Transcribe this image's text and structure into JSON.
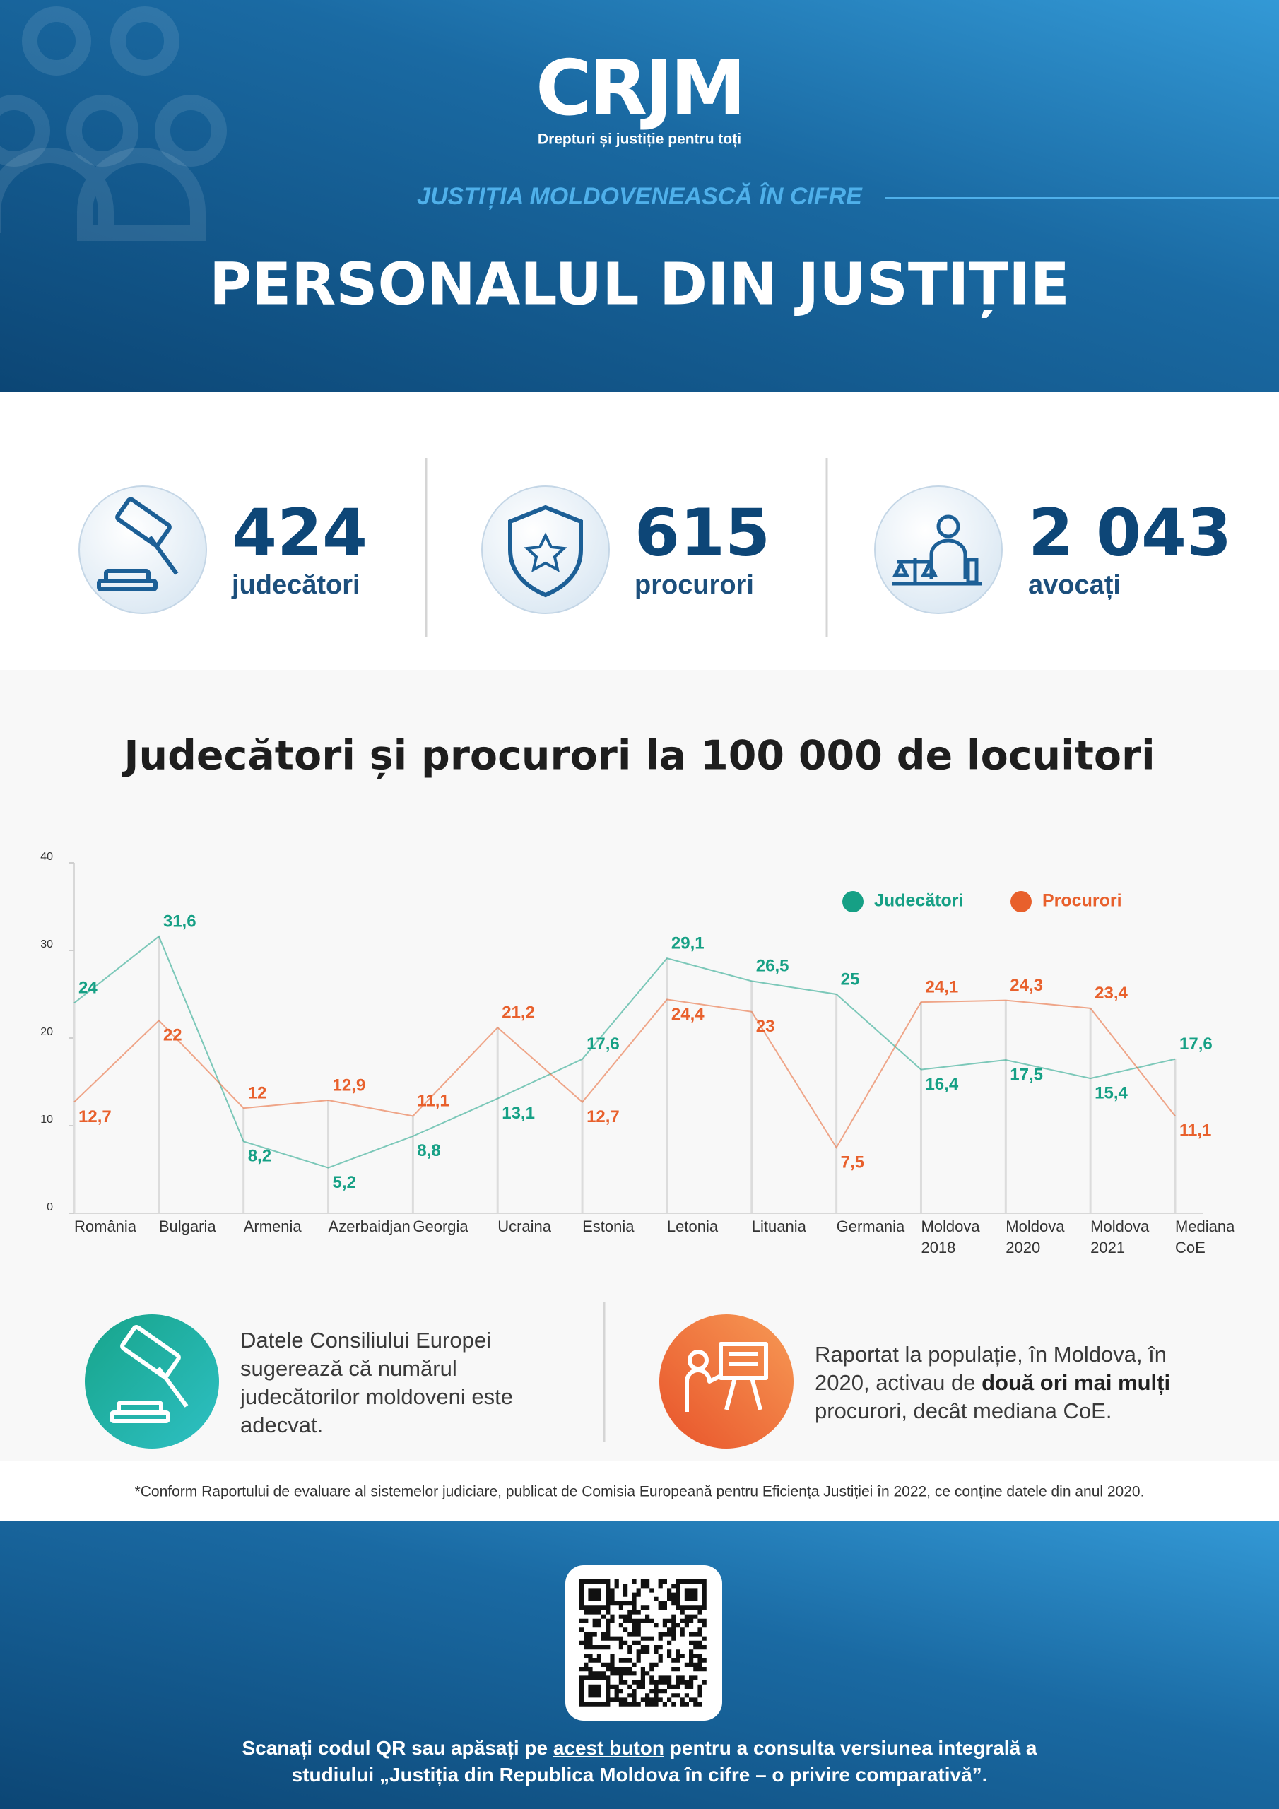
{
  "header": {
    "logo": "CRJM",
    "tagline": "Drepturi și justiție pentru toți",
    "kicker": "JUSTIȚIA MOLDOVENEASCĂ ÎN CIFRE",
    "title": "PERSONALUL DIN JUSTIȚIE"
  },
  "stats": [
    {
      "number": "424",
      "label": "judecători"
    },
    {
      "number": "615",
      "label": "procurori"
    },
    {
      "number": "2 043",
      "label": "avocați"
    }
  ],
  "chart_data": {
    "type": "line",
    "title": "Judecători și procurori la 100 000 de locuitori",
    "categories": [
      "România",
      "Bulgaria",
      "Armenia",
      "Azerbaidjan",
      "Georgia",
      "Ucraina",
      "Estonia",
      "Letonia",
      "Lituania",
      "Germania",
      "Moldova 2018",
      "Moldova 2020",
      "Moldova 2021",
      "Mediana CoE"
    ],
    "series": [
      {
        "name": "Judecători",
        "color": "#16a085",
        "values": [
          24,
          31.6,
          8.2,
          5.2,
          8.8,
          13.1,
          17.6,
          29.1,
          26.5,
          25,
          16.4,
          17.5,
          15.4,
          17.6
        ],
        "value_labels": [
          "24",
          "31,6",
          "8,2",
          "5,2",
          "8,8",
          "13,1",
          "17,6",
          "29,1",
          "26,5",
          "25",
          "16,4",
          "17,5",
          "15,4",
          "17,6"
        ]
      },
      {
        "name": "Procurori",
        "color": "#e8602c",
        "values": [
          12.7,
          22,
          12,
          12.9,
          11.1,
          21.2,
          12.7,
          24.4,
          23,
          7.5,
          24.1,
          24.3,
          23.4,
          11.1
        ],
        "value_labels": [
          "12,7",
          "22",
          "12",
          "12,9",
          "11,1",
          "21,2",
          "12,7",
          "24,4",
          "23",
          "7,5",
          "24,1",
          "24,3",
          "23,4",
          "11,1"
        ]
      }
    ],
    "ylim": [
      0,
      40
    ],
    "yticks": [
      0,
      10,
      20,
      30,
      40
    ],
    "legend": "upper right"
  },
  "notes": [
    {
      "parts": [
        "Datele Consiliului Europei sugerează că numărul judecătorilor moldoveni este adecvat."
      ]
    },
    {
      "parts": [
        "Raportat la populație, în Moldova, în 2020, activau de ",
        "două ori mai mulți",
        " procurori, decât mediana CoE."
      ]
    }
  ],
  "footnote": "*Conform Raportului de evaluare al sistemelor judiciare, publicat de Comisia Europeană pentru Eficiența Justiției în 2022, ce conține datele din anul 2020.",
  "footer": {
    "parts": [
      "Scanați codul QR sau apăsați pe ",
      "acest buton",
      " pentru a consulta versiunea integrală a studiului „Justiția din Republica Moldova în cifre – o privire comparativă”."
    ]
  }
}
